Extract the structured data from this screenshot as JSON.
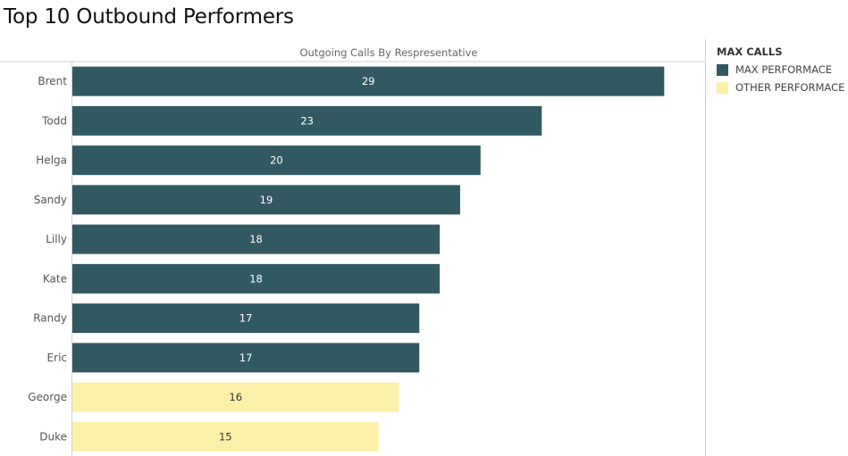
{
  "dashboard_title": "Top 10 Outbound Performers",
  "colors": {
    "max": "#325961",
    "other": "#fbf0a8",
    "label_on_max": "#ffffff",
    "label_on_other": "#333333"
  },
  "legend": {
    "title": "MAX CALLS",
    "items": [
      {
        "label": "MAX PERFORMACE",
        "color": "#325961"
      },
      {
        "label": "OTHER PERFORMACE",
        "color": "#fbf0a8"
      }
    ]
  },
  "chart_data": {
    "type": "bar",
    "orientation": "horizontal",
    "title": "Outgoing Calls By Respresentative",
    "categories": [
      "Brent",
      "Todd",
      "Helga",
      "Sandy",
      "Lilly",
      "Kate",
      "Randy",
      "Eric",
      "George",
      "Duke"
    ],
    "values": [
      29,
      23,
      20,
      19,
      18,
      18,
      17,
      17,
      16,
      15
    ],
    "groups": [
      "MAX PERFORMACE",
      "MAX PERFORMACE",
      "MAX PERFORMACE",
      "MAX PERFORMACE",
      "MAX PERFORMACE",
      "MAX PERFORMACE",
      "MAX PERFORMACE",
      "MAX PERFORMACE",
      "OTHER PERFORMACE",
      "OTHER PERFORMACE"
    ],
    "xlim": [
      0,
      31
    ],
    "grid": false,
    "legend_position": "right"
  }
}
